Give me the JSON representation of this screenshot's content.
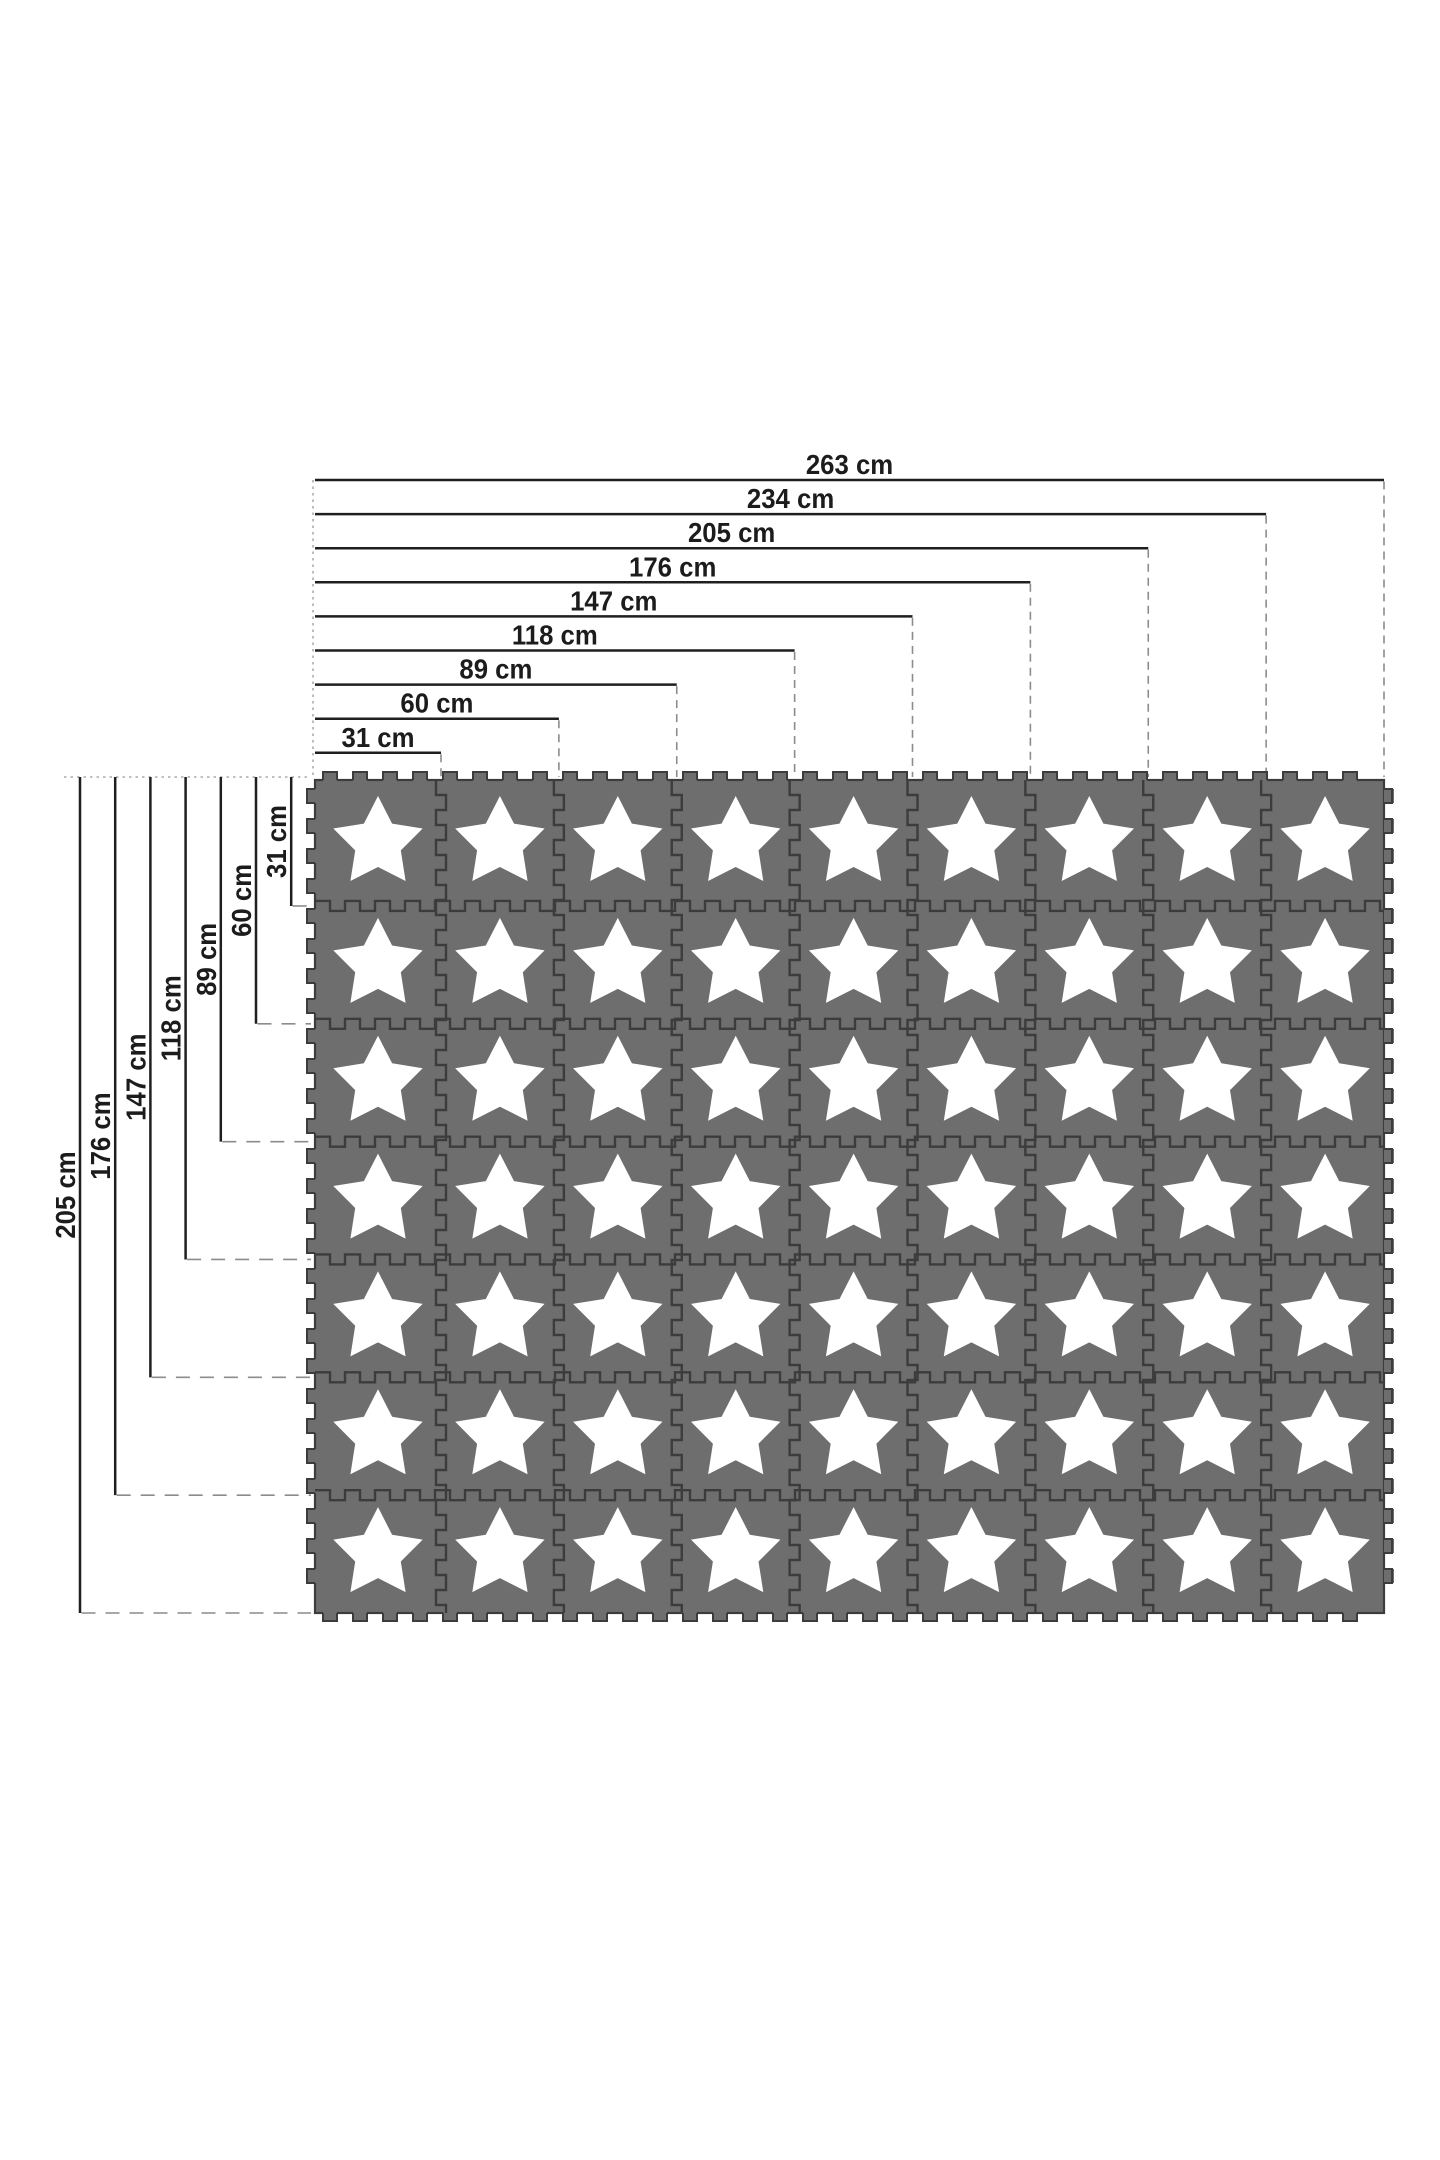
{
  "page": {
    "background": "#ffffff"
  },
  "diagram": {
    "unit": "cm",
    "top_dimensions": [
      {
        "label": "263 cm",
        "cm": 263
      },
      {
        "label": "234 cm",
        "cm": 234
      },
      {
        "label": "205 cm",
        "cm": 205
      },
      {
        "label": "176 cm",
        "cm": 176
      },
      {
        "label": "147 cm",
        "cm": 147
      },
      {
        "label": "118 cm",
        "cm": 118
      },
      {
        "label": "89 cm",
        "cm": 89
      },
      {
        "label": "60 cm",
        "cm": 60
      },
      {
        "label": "31 cm",
        "cm": 31
      }
    ],
    "left_dimensions": [
      {
        "label": "205 cm",
        "cm": 205
      },
      {
        "label": "176 cm",
        "cm": 176
      },
      {
        "label": "147 cm",
        "cm": 147
      },
      {
        "label": "118 cm",
        "cm": 118
      },
      {
        "label": "89 cm",
        "cm": 89
      },
      {
        "label": "60 cm",
        "cm": 60
      },
      {
        "label": "31 cm",
        "cm": 31
      }
    ],
    "mat": {
      "columns": 9,
      "rows": 7,
      "width_cm": 263,
      "height_cm": 205,
      "column_seam_positions_cm": [
        31,
        60,
        89,
        118,
        147,
        176,
        205,
        234
      ],
      "row_seam_positions_cm": [
        31,
        60,
        89,
        118,
        147,
        176
      ],
      "tile_icon": "star"
    },
    "colors": {
      "tile_gray": "#6e6e6e",
      "tile_edge": "#3c3c3c",
      "star_white": "#ffffff",
      "dimension_line": "#1f1f1f",
      "label_text": "#1c1c1c",
      "dash_guide": "#8c8c8c",
      "dot_guide": "#ababab",
      "background": "#ffffff"
    }
  }
}
